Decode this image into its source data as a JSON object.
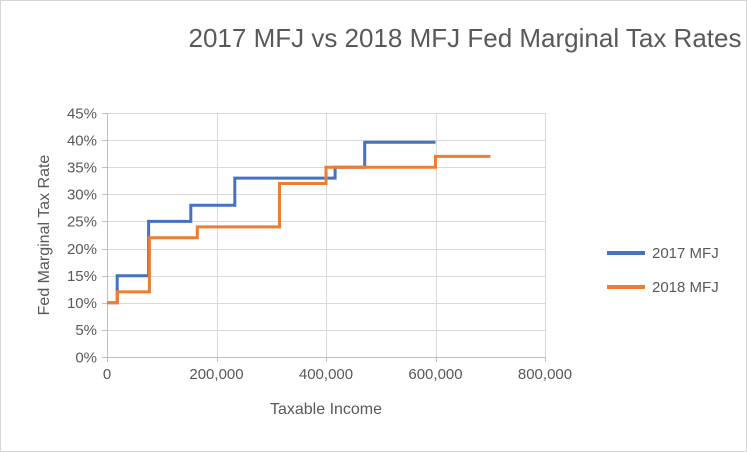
{
  "chart_data": {
    "type": "line",
    "subtype": "step",
    "title": "2017 MFJ vs 2018 MFJ Fed Marginal Tax Rates",
    "xlabel": "Taxable Income",
    "ylabel": "Fed Marginal Tax Rate",
    "xlim": [
      0,
      800000
    ],
    "ylim": [
      0,
      45
    ],
    "grid": true,
    "legend_position": "right",
    "x_ticks": {
      "values": [
        0,
        200000,
        400000,
        600000,
        800000
      ],
      "labels": [
        "0",
        "200,000",
        "400,000",
        "600,000",
        "800,000"
      ]
    },
    "y_ticks": {
      "values": [
        0,
        5,
        10,
        15,
        20,
        25,
        30,
        35,
        40,
        45
      ],
      "labels": [
        "0%",
        "5%",
        "10%",
        "15%",
        "20%",
        "25%",
        "30%",
        "35%",
        "40%",
        "45%"
      ]
    },
    "series": [
      {
        "name": "2017 MFJ",
        "color": "#4472C4",
        "points": [
          [
            0,
            10
          ],
          [
            18650,
            10
          ],
          [
            18650,
            15
          ],
          [
            75900,
            15
          ],
          [
            75900,
            25
          ],
          [
            153100,
            25
          ],
          [
            153100,
            28
          ],
          [
            233350,
            28
          ],
          [
            233350,
            33
          ],
          [
            416700,
            33
          ],
          [
            416700,
            35
          ],
          [
            470700,
            35
          ],
          [
            470700,
            39.6
          ],
          [
            600000,
            39.6
          ]
        ]
      },
      {
        "name": "2018 MFJ",
        "color": "#ED7D31",
        "points": [
          [
            0,
            10
          ],
          [
            19050,
            10
          ],
          [
            19050,
            12
          ],
          [
            77400,
            12
          ],
          [
            77400,
            22
          ],
          [
            165000,
            22
          ],
          [
            165000,
            24
          ],
          [
            315000,
            24
          ],
          [
            315000,
            32
          ],
          [
            400000,
            32
          ],
          [
            400000,
            35
          ],
          [
            600000,
            35
          ],
          [
            600000,
            37
          ],
          [
            700000,
            37
          ]
        ]
      }
    ],
    "colors": {
      "grid": "#d9d9d9",
      "axis": "#bfbfbf",
      "text": "#595959",
      "background": "#ffffff",
      "frame_border": "#d6d6d6"
    }
  }
}
